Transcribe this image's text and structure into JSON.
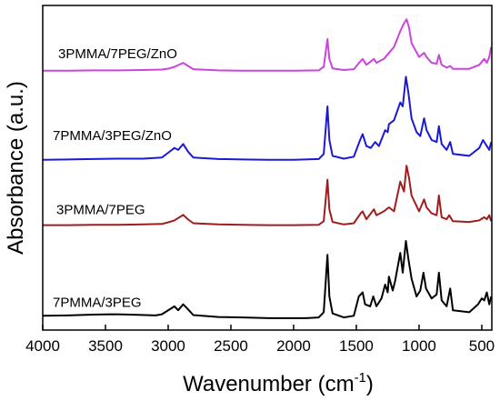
{
  "chart_data": {
    "type": "line",
    "xlabel": "Wavenumber (cm",
    "xlabel_sup": "-1",
    "xlabel_close": ")",
    "ylabel": "Absorbance (a.u.)",
    "x_reversed": true,
    "xlim": [
      4000,
      420
    ],
    "xticks": [
      "4000",
      "3500",
      "3000",
      "2500",
      "2000",
      "1500",
      "1000",
      "500"
    ],
    "y_tick_labels": false,
    "grid": false,
    "legend": "none (series labelled directly above each trace)",
    "series": [
      {
        "name": "7PMMA/3PEG",
        "color": "#000000",
        "offset": 0,
        "points": [
          [
            4000,
            0.06
          ],
          [
            3800,
            0.07
          ],
          [
            3600,
            0.09
          ],
          [
            3450,
            0.1
          ],
          [
            3300,
            0.09
          ],
          [
            3100,
            0.07
          ],
          [
            3050,
            0.1
          ],
          [
            2990,
            0.22
          ],
          [
            2950,
            0.3
          ],
          [
            2920,
            0.2
          ],
          [
            2880,
            0.35
          ],
          [
            2840,
            0.22
          ],
          [
            2800,
            0.08
          ],
          [
            2600,
            0.03
          ],
          [
            2400,
            0.02
          ],
          [
            2200,
            0.0
          ],
          [
            2000,
            0.0
          ],
          [
            1900,
            0.0
          ],
          [
            1800,
            0.02
          ],
          [
            1760,
            0.15
          ],
          [
            1730,
            1.6
          ],
          [
            1715,
            0.55
          ],
          [
            1690,
            0.12
          ],
          [
            1600,
            0.02
          ],
          [
            1520,
            0.06
          ],
          [
            1480,
            0.55
          ],
          [
            1450,
            0.65
          ],
          [
            1430,
            0.35
          ],
          [
            1390,
            0.3
          ],
          [
            1365,
            0.55
          ],
          [
            1340,
            0.3
          ],
          [
            1300,
            0.5
          ],
          [
            1270,
            0.85
          ],
          [
            1250,
            0.65
          ],
          [
            1240,
            1.05
          ],
          [
            1210,
            0.7
          ],
          [
            1190,
            0.95
          ],
          [
            1150,
            1.65
          ],
          [
            1130,
            1.15
          ],
          [
            1105,
            1.95
          ],
          [
            1085,
            1.5
          ],
          [
            1060,
            1.0
          ],
          [
            1020,
            0.55
          ],
          [
            990,
            0.7
          ],
          [
            965,
            1.15
          ],
          [
            945,
            0.75
          ],
          [
            900,
            0.5
          ],
          [
            860,
            0.6
          ],
          [
            842,
            1.15
          ],
          [
            820,
            0.45
          ],
          [
            780,
            0.3
          ],
          [
            752,
            0.75
          ],
          [
            730,
            0.2
          ],
          [
            600,
            0.15
          ],
          [
            530,
            0.35
          ],
          [
            500,
            0.5
          ],
          [
            480,
            0.45
          ],
          [
            460,
            0.65
          ],
          [
            440,
            0.35
          ],
          [
            425,
            0.55
          ]
        ]
      },
      {
        "name": "3PMMA/7PEG",
        "color": "#a11d1d",
        "offset": 2.35,
        "points": [
          [
            4000,
            0.0
          ],
          [
            3800,
            0.0
          ],
          [
            3600,
            0.01
          ],
          [
            3400,
            0.01
          ],
          [
            3200,
            0.02
          ],
          [
            3050,
            0.03
          ],
          [
            2990,
            0.08
          ],
          [
            2950,
            0.12
          ],
          [
            2880,
            0.26
          ],
          [
            2840,
            0.14
          ],
          [
            2800,
            0.05
          ],
          [
            2600,
            0.02
          ],
          [
            2400,
            0.01
          ],
          [
            2200,
            0.0
          ],
          [
            2000,
            0.0
          ],
          [
            1800,
            0.01
          ],
          [
            1760,
            0.1
          ],
          [
            1730,
            1.15
          ],
          [
            1715,
            0.4
          ],
          [
            1690,
            0.08
          ],
          [
            1600,
            0.02
          ],
          [
            1520,
            0.05
          ],
          [
            1465,
            0.3
          ],
          [
            1450,
            0.35
          ],
          [
            1420,
            0.15
          ],
          [
            1360,
            0.4
          ],
          [
            1340,
            0.25
          ],
          [
            1280,
            0.35
          ],
          [
            1240,
            0.45
          ],
          [
            1200,
            0.35
          ],
          [
            1150,
            1.1
          ],
          [
            1120,
            0.85
          ],
          [
            1100,
            1.5
          ],
          [
            1080,
            1.2
          ],
          [
            1060,
            0.75
          ],
          [
            1000,
            0.35
          ],
          [
            960,
            0.65
          ],
          [
            940,
            0.45
          ],
          [
            900,
            0.3
          ],
          [
            860,
            0.25
          ],
          [
            842,
            0.75
          ],
          [
            820,
            0.2
          ],
          [
            780,
            0.15
          ],
          [
            760,
            0.25
          ],
          [
            730,
            0.1
          ],
          [
            600,
            0.08
          ],
          [
            520,
            0.12
          ],
          [
            480,
            0.2
          ],
          [
            460,
            0.15
          ],
          [
            440,
            0.25
          ],
          [
            425,
            0.1
          ]
        ]
      },
      {
        "name": "7PMMA/3PEG/ZnO",
        "color": "#1a1ad6",
        "offset": 4.0,
        "points": [
          [
            4000,
            0.0
          ],
          [
            3800,
            0.01
          ],
          [
            3600,
            0.02
          ],
          [
            3400,
            0.03
          ],
          [
            3200,
            0.03
          ],
          [
            3050,
            0.06
          ],
          [
            3000,
            0.18
          ],
          [
            2950,
            0.3
          ],
          [
            2920,
            0.25
          ],
          [
            2880,
            0.4
          ],
          [
            2840,
            0.2
          ],
          [
            2800,
            0.06
          ],
          [
            2600,
            0.02
          ],
          [
            2400,
            0.01
          ],
          [
            2200,
            0.0
          ],
          [
            2000,
            0.0
          ],
          [
            1800,
            0.02
          ],
          [
            1760,
            0.15
          ],
          [
            1730,
            1.35
          ],
          [
            1715,
            0.5
          ],
          [
            1690,
            0.1
          ],
          [
            1600,
            0.03
          ],
          [
            1520,
            0.08
          ],
          [
            1470,
            0.5
          ],
          [
            1450,
            0.65
          ],
          [
            1420,
            0.35
          ],
          [
            1385,
            0.3
          ],
          [
            1350,
            0.45
          ],
          [
            1320,
            0.35
          ],
          [
            1270,
            0.75
          ],
          [
            1250,
            0.7
          ],
          [
            1240,
            0.9
          ],
          [
            1200,
            1.0
          ],
          [
            1150,
            1.45
          ],
          [
            1130,
            1.35
          ],
          [
            1105,
            2.1
          ],
          [
            1085,
            1.7
          ],
          [
            1060,
            1.05
          ],
          [
            1020,
            0.7
          ],
          [
            990,
            0.6
          ],
          [
            960,
            1.05
          ],
          [
            940,
            0.75
          ],
          [
            900,
            0.5
          ],
          [
            860,
            0.45
          ],
          [
            842,
            0.85
          ],
          [
            820,
            0.4
          ],
          [
            780,
            0.25
          ],
          [
            752,
            0.45
          ],
          [
            730,
            0.15
          ],
          [
            600,
            0.1
          ],
          [
            520,
            0.3
          ],
          [
            490,
            0.5
          ],
          [
            460,
            0.35
          ],
          [
            440,
            0.25
          ],
          [
            425,
            0.45
          ]
        ]
      },
      {
        "name": "3PMMA/7PEG/ZnO",
        "color": "#cc44dd",
        "offset": 6.25,
        "points": [
          [
            4000,
            0.0
          ],
          [
            3800,
            0.0
          ],
          [
            3600,
            0.01
          ],
          [
            3400,
            0.01
          ],
          [
            3200,
            0.02
          ],
          [
            3050,
            0.03
          ],
          [
            2990,
            0.06
          ],
          [
            2950,
            0.1
          ],
          [
            2880,
            0.2
          ],
          [
            2840,
            0.12
          ],
          [
            2800,
            0.04
          ],
          [
            2600,
            0.01
          ],
          [
            2400,
            0.0
          ],
          [
            2200,
            0.0
          ],
          [
            2000,
            0.0
          ],
          [
            1800,
            0.01
          ],
          [
            1760,
            0.1
          ],
          [
            1730,
            0.8
          ],
          [
            1715,
            0.3
          ],
          [
            1690,
            0.06
          ],
          [
            1600,
            0.02
          ],
          [
            1520,
            0.04
          ],
          [
            1465,
            0.25
          ],
          [
            1450,
            0.3
          ],
          [
            1420,
            0.15
          ],
          [
            1360,
            0.3
          ],
          [
            1340,
            0.2
          ],
          [
            1280,
            0.3
          ],
          [
            1240,
            0.45
          ],
          [
            1200,
            0.6
          ],
          [
            1150,
            1.0
          ],
          [
            1120,
            1.2
          ],
          [
            1100,
            1.3
          ],
          [
            1080,
            1.1
          ],
          [
            1060,
            0.7
          ],
          [
            1000,
            0.35
          ],
          [
            960,
            0.45
          ],
          [
            940,
            0.35
          ],
          [
            900,
            0.2
          ],
          [
            860,
            0.18
          ],
          [
            842,
            0.4
          ],
          [
            820,
            0.15
          ],
          [
            780,
            0.08
          ],
          [
            752,
            0.12
          ],
          [
            730,
            0.05
          ],
          [
            600,
            0.05
          ],
          [
            520,
            0.15
          ],
          [
            480,
            0.3
          ],
          [
            460,
            0.2
          ],
          [
            440,
            0.35
          ],
          [
            425,
            0.6
          ]
        ]
      }
    ]
  }
}
